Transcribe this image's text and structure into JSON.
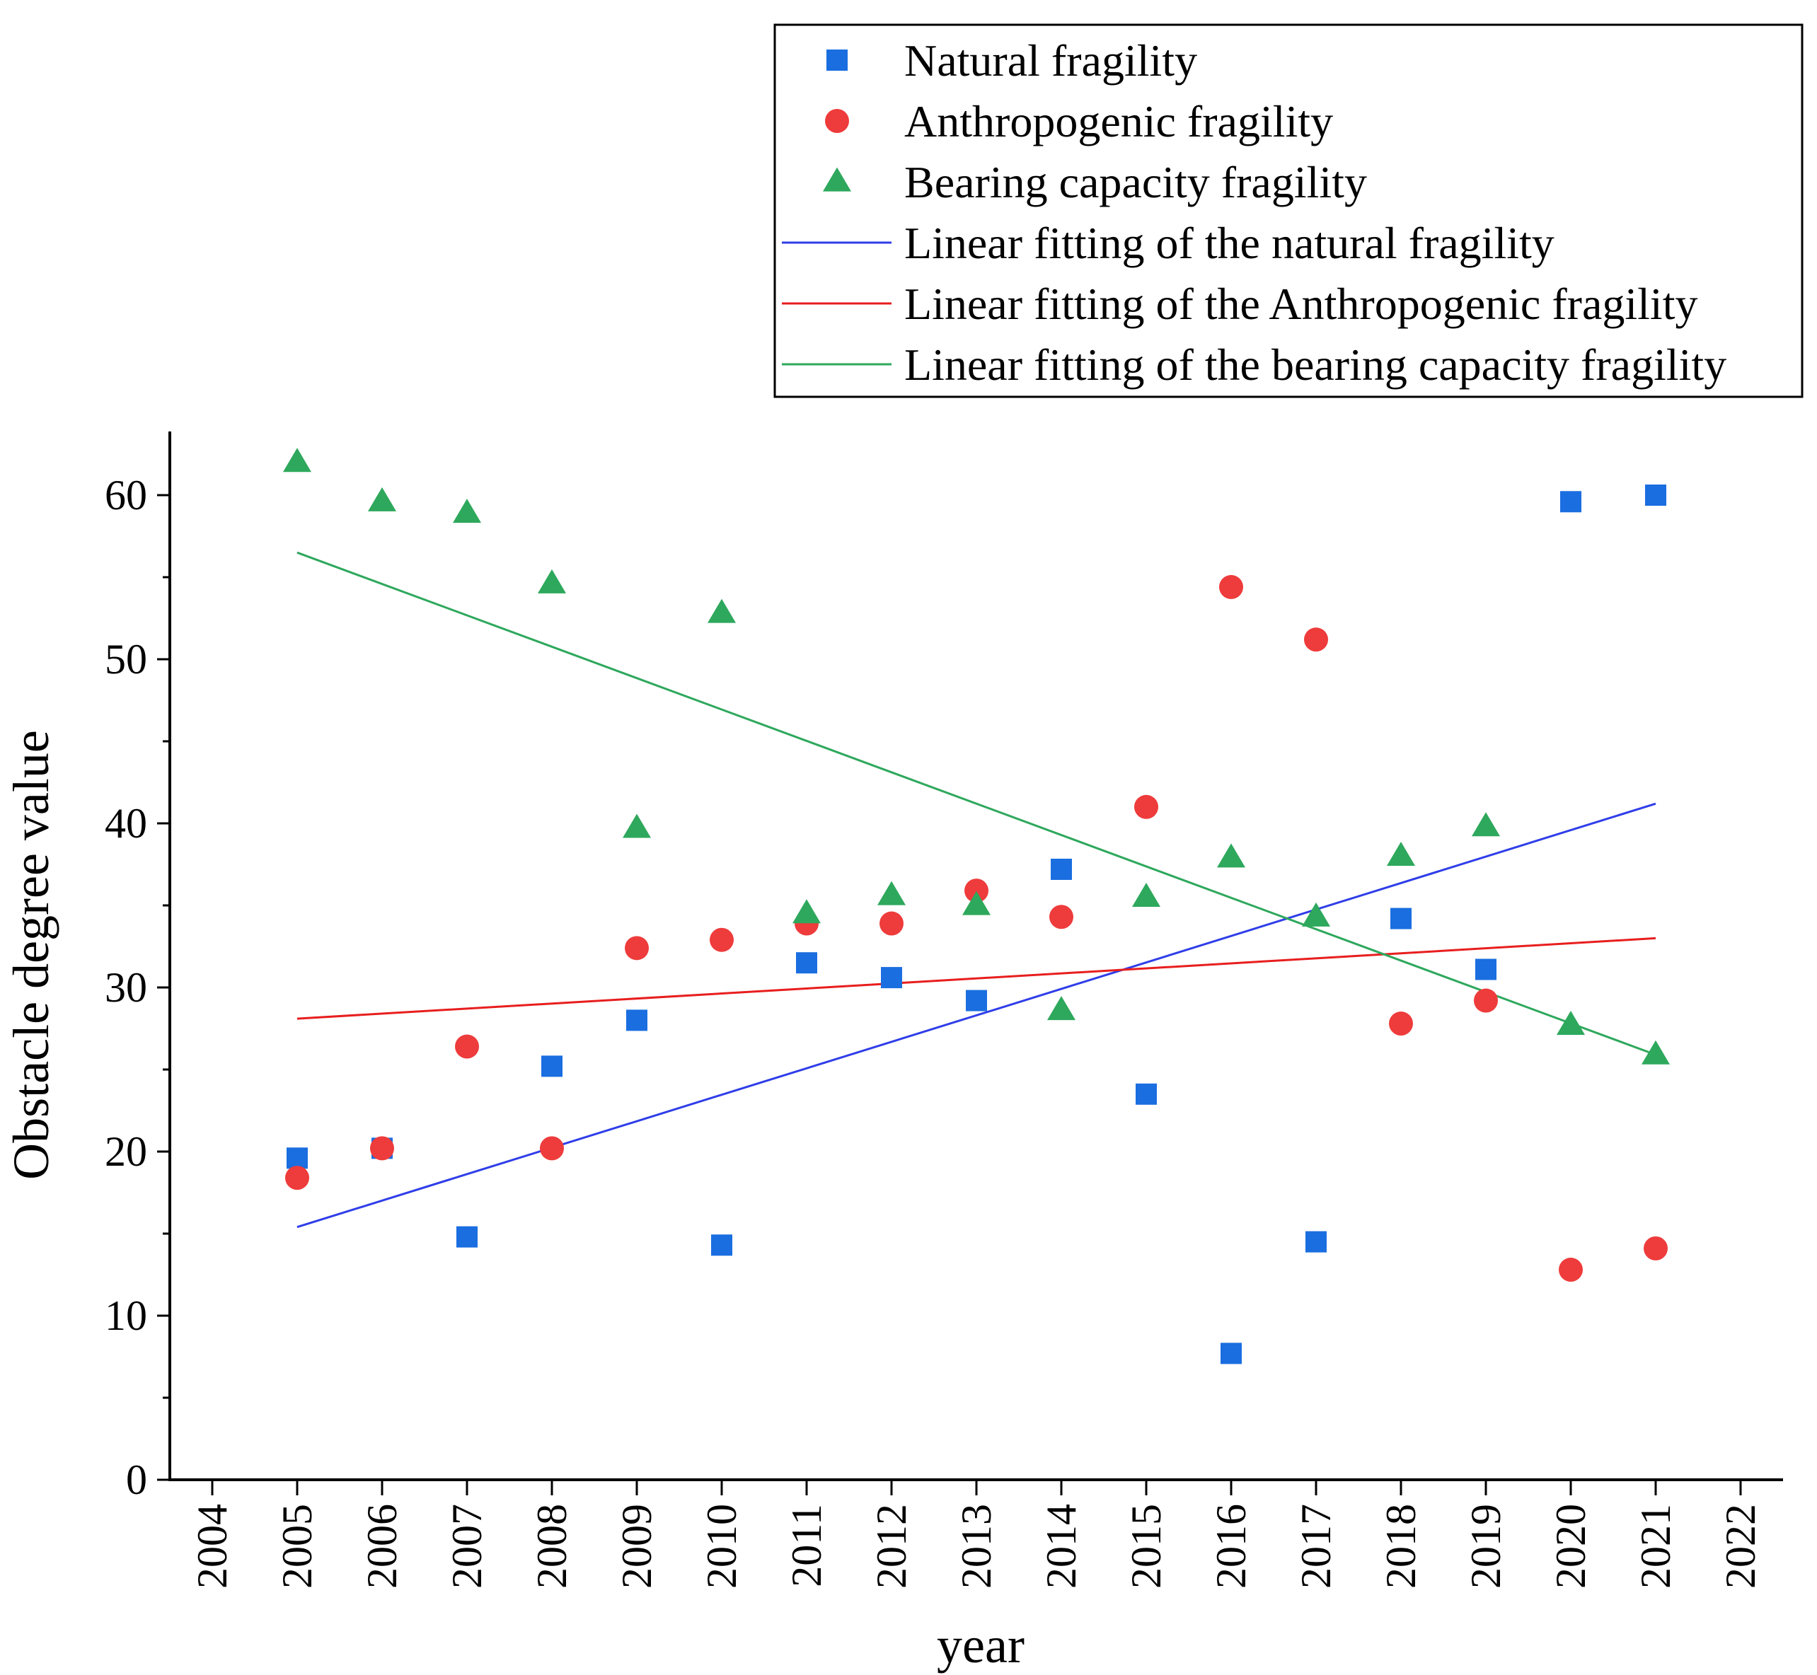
{
  "chart_data": {
    "type": "scatter",
    "xlabel": "year",
    "ylabel": "Obstacle degree value",
    "xlim": [
      2004,
      2022
    ],
    "ylim": [
      0,
      65
    ],
    "x_ticks": [
      "2004",
      "2005",
      "2006",
      "2007",
      "2008",
      "2009",
      "2010",
      "2011",
      "2012",
      "2013",
      "2014",
      "2015",
      "2016",
      "2017",
      "2018",
      "2019",
      "2020",
      "2021",
      "2022"
    ],
    "y_ticks": [
      "0",
      "10",
      "20",
      "30",
      "40",
      "50",
      "60"
    ],
    "legend_position": "top-right",
    "grid": false,
    "series": [
      {
        "name": "Natural fragility",
        "marker": "square",
        "color": "#1a6ee0",
        "x": [
          2005,
          2006,
          2007,
          2008,
          2009,
          2010,
          2011,
          2012,
          2013,
          2014,
          2015,
          2016,
          2017,
          2018,
          2019,
          2020,
          2021
        ],
        "values": [
          19.6,
          20.2,
          14.8,
          25.2,
          28.0,
          14.3,
          31.5,
          30.6,
          29.2,
          37.2,
          23.5,
          7.7,
          14.5,
          34.2,
          31.1,
          59.6,
          60.0
        ]
      },
      {
        "name": "Anthropogenic fragility",
        "marker": "circle",
        "color": "#ee3b3b",
        "x": [
          2005,
          2006,
          2007,
          2008,
          2009,
          2010,
          2011,
          2012,
          2013,
          2014,
          2015,
          2016,
          2017,
          2018,
          2019,
          2020,
          2021
        ],
        "values": [
          18.4,
          20.2,
          26.4,
          20.2,
          32.4,
          32.9,
          33.9,
          33.9,
          35.9,
          34.3,
          41.0,
          54.4,
          51.2,
          27.8,
          29.2,
          12.8,
          14.1
        ]
      },
      {
        "name": "Bearing capacity fragility",
        "marker": "triangle",
        "color": "#2ea85c",
        "x": [
          2005,
          2006,
          2007,
          2008,
          2009,
          2010,
          2011,
          2012,
          2013,
          2014,
          2015,
          2016,
          2017,
          2018,
          2019,
          2020,
          2021
        ],
        "values": [
          62.0,
          59.6,
          58.9,
          54.6,
          39.7,
          52.8,
          34.5,
          35.6,
          35.0,
          28.6,
          35.5,
          37.9,
          34.3,
          38.0,
          39.8,
          27.7,
          25.9
        ]
      }
    ],
    "fit_lines": [
      {
        "name": "Linear fitting of the natural fragility",
        "color": "#2f3ee8",
        "x": [
          2005,
          2021
        ],
        "values": [
          15.4,
          41.2
        ]
      },
      {
        "name": "Linear fitting of the Anthropogenic fragility",
        "color": "#e81e1e",
        "x": [
          2005,
          2021
        ],
        "values": [
          28.1,
          33.0
        ]
      },
      {
        "name": "Linear fitting of the bearing capacity fragility",
        "color": "#2ea85c",
        "x": [
          2005,
          2021
        ],
        "values": [
          56.5,
          25.9
        ]
      }
    ]
  }
}
